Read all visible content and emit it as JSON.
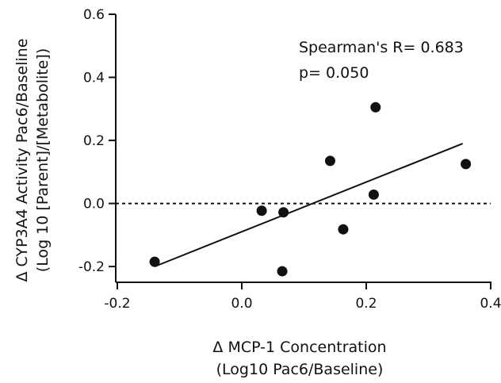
{
  "chart_data": {
    "type": "scatter",
    "xlabel_line1": "Δ MCP-1 Concentration",
    "xlabel_line2": "(Log10 Pac6/Baseline)",
    "ylabel_line1": "Δ CYP3A4 Activity Pac6/Baseline",
    "ylabel_line2": "(Log 10 [Parent]/[Metabolite])",
    "xlim": [
      -0.2,
      0.4
    ],
    "ylim": [
      -0.25,
      0.6
    ],
    "x_ticks": [
      -0.2,
      0.0,
      0.2,
      0.4
    ],
    "x_tick_labels": [
      "-0.2",
      "0.0",
      "0.2",
      "0.4"
    ],
    "y_ticks": [
      -0.2,
      0.0,
      0.2,
      0.4,
      0.6
    ],
    "y_tick_labels": [
      "-0.2",
      "0.0",
      "0.2",
      "0.4",
      "0.6"
    ],
    "points": [
      {
        "x": -0.14,
        "y": -0.185
      },
      {
        "x": 0.032,
        "y": -0.023
      },
      {
        "x": 0.067,
        "y": -0.028
      },
      {
        "x": 0.065,
        "y": -0.215
      },
      {
        "x": 0.142,
        "y": 0.135
      },
      {
        "x": 0.163,
        "y": -0.082
      },
      {
        "x": 0.212,
        "y": 0.028
      },
      {
        "x": 0.215,
        "y": 0.305
      },
      {
        "x": 0.36,
        "y": 0.125
      }
    ],
    "fit_line": {
      "x": [
        -0.14,
        0.355
      ],
      "y": [
        -0.2,
        0.19
      ]
    },
    "reference_line_y": 0.0,
    "annotations": [
      "Spearman's R= 0.683",
      "p= 0.050"
    ]
  }
}
